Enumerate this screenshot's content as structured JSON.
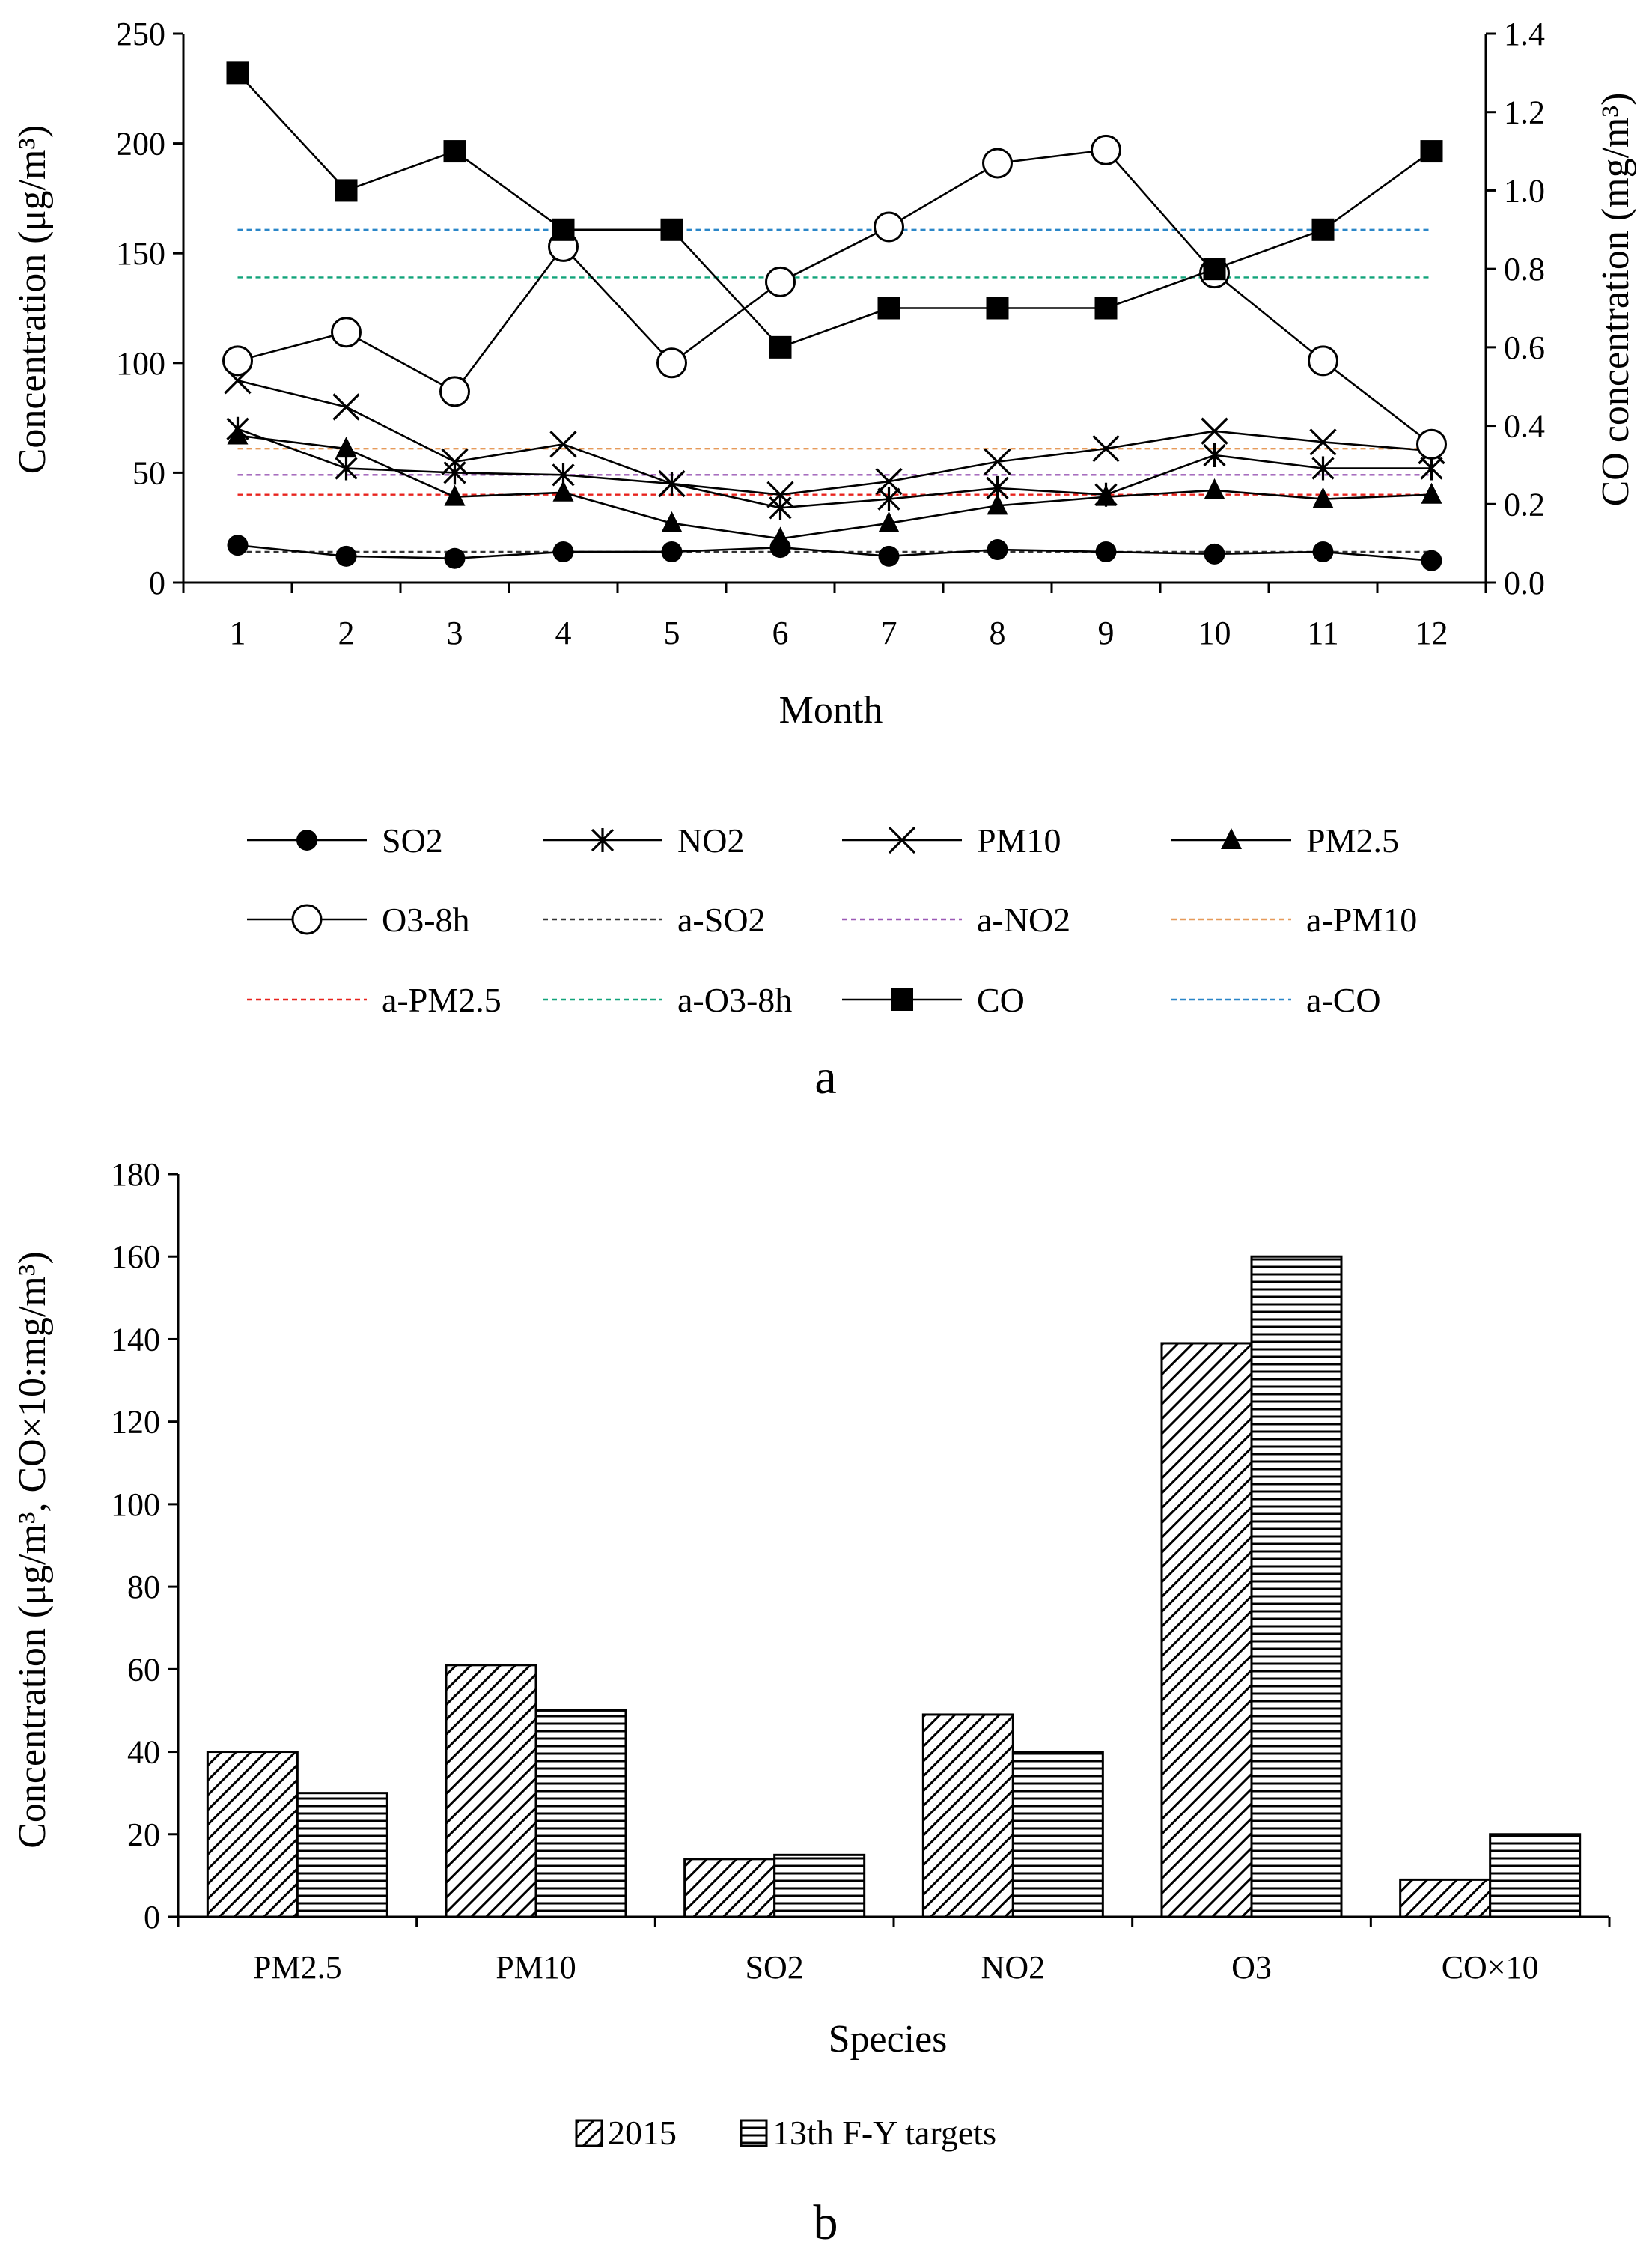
{
  "chart_data": [
    {
      "type": "line",
      "panel_label": "a",
      "xlabel": "Month",
      "ylabel_left": "Concentration (μg/m³)",
      "ylabel_right": "CO concentration (mg/m³)",
      "ylim_left": [
        0,
        250
      ],
      "yticks_left": [
        "0",
        "50",
        "100",
        "150",
        "200",
        "250"
      ],
      "ylim_right": [
        0,
        1.4
      ],
      "yticks_right": [
        "0.0",
        "0.2",
        "0.4",
        "0.6",
        "0.8",
        "1.0",
        "1.2",
        "1.4"
      ],
      "x": [
        "1",
        "2",
        "3",
        "4",
        "5",
        "6",
        "7",
        "8",
        "9",
        "10",
        "11",
        "12"
      ],
      "series": [
        {
          "name": "SO2",
          "axis": "left",
          "marker": "filled-circle",
          "color": "#000000",
          "values": [
            17,
            12,
            11,
            14,
            14,
            16,
            12,
            15,
            14,
            13,
            14,
            10
          ]
        },
        {
          "name": "NO2",
          "axis": "left",
          "marker": "star",
          "color": "#000000",
          "values": [
            70,
            52,
            50,
            49,
            45,
            34,
            38,
            43,
            40,
            58,
            52,
            52
          ]
        },
        {
          "name": "PM10",
          "axis": "left",
          "marker": "x",
          "color": "#000000",
          "values": [
            92,
            80,
            55,
            63,
            45,
            40,
            46,
            55,
            61,
            69,
            64,
            60
          ]
        },
        {
          "name": "PM2.5",
          "axis": "left",
          "marker": "filled-triangle",
          "color": "#000000",
          "values": [
            67,
            61,
            39,
            41,
            27,
            20,
            27,
            35,
            39,
            42,
            38,
            40
          ]
        },
        {
          "name": "O3-8h",
          "axis": "left",
          "marker": "open-circle",
          "color": "#000000",
          "values": [
            101,
            114,
            87,
            153,
            100,
            137,
            162,
            191,
            197,
            141,
            101,
            63
          ]
        },
        {
          "name": "a-SO2",
          "axis": "left",
          "style": "dashed",
          "color": "#333333",
          "values": [
            14,
            14,
            14,
            14,
            14,
            14,
            14,
            14,
            14,
            14,
            14,
            14
          ]
        },
        {
          "name": "a-NO2",
          "axis": "left",
          "style": "dashed",
          "color": "#9b59b6",
          "values": [
            49,
            49,
            49,
            49,
            49,
            49,
            49,
            49,
            49,
            49,
            49,
            49
          ]
        },
        {
          "name": "a-PM10",
          "axis": "left",
          "style": "dashed",
          "color": "#e69a5a",
          "values": [
            61,
            61,
            61,
            61,
            61,
            61,
            61,
            61,
            61,
            61,
            61,
            61
          ]
        },
        {
          "name": "a-PM2.5",
          "axis": "left",
          "style": "dashed",
          "color": "#e8231e",
          "values": [
            40,
            40,
            40,
            40,
            40,
            40,
            40,
            40,
            40,
            40,
            40,
            40
          ]
        },
        {
          "name": "a-O3-8h",
          "axis": "left",
          "style": "dashed",
          "color": "#12a37a",
          "values": [
            139,
            139,
            139,
            139,
            139,
            139,
            139,
            139,
            139,
            139,
            139,
            139
          ]
        },
        {
          "name": "CO",
          "axis": "right",
          "marker": "filled-square",
          "color": "#000000",
          "values": [
            1.3,
            1.0,
            1.1,
            0.9,
            0.9,
            0.6,
            0.7,
            0.7,
            0.7,
            0.8,
            0.9,
            1.1
          ]
        },
        {
          "name": "a-CO",
          "axis": "right",
          "style": "dashed",
          "color": "#2a86c8",
          "values": [
            0.9,
            0.9,
            0.9,
            0.9,
            0.9,
            0.9,
            0.9,
            0.9,
            0.9,
            0.9,
            0.9,
            0.9
          ]
        }
      ],
      "legend_order": [
        "SO2",
        "NO2",
        "PM10",
        "PM2.5",
        "O3-8h",
        "a-SO2",
        "a-NO2",
        "a-PM10",
        "a-PM2.5",
        "a-O3-8h",
        "CO",
        "a-CO"
      ],
      "legend_position": "bottom"
    },
    {
      "type": "bar",
      "panel_label": "b",
      "xlabel": "Species",
      "ylabel": "Concentration (μg/m³, CO×10:mg/m³)",
      "ylim": [
        0,
        180
      ],
      "yticks": [
        "0",
        "20",
        "40",
        "60",
        "80",
        "100",
        "120",
        "140",
        "160",
        "180"
      ],
      "categories": [
        "PM2.5",
        "PM10",
        "SO2",
        "NO2",
        "O3",
        "CO×10"
      ],
      "series": [
        {
          "name": "2015",
          "pattern": "diagonal-hatch",
          "values": [
            40,
            61,
            14,
            49,
            139,
            9
          ]
        },
        {
          "name": "13th F-Y targets",
          "pattern": "horizontal-hatch",
          "values": [
            30,
            50,
            15,
            40,
            160,
            20
          ]
        }
      ],
      "legend_position": "bottom"
    }
  ]
}
